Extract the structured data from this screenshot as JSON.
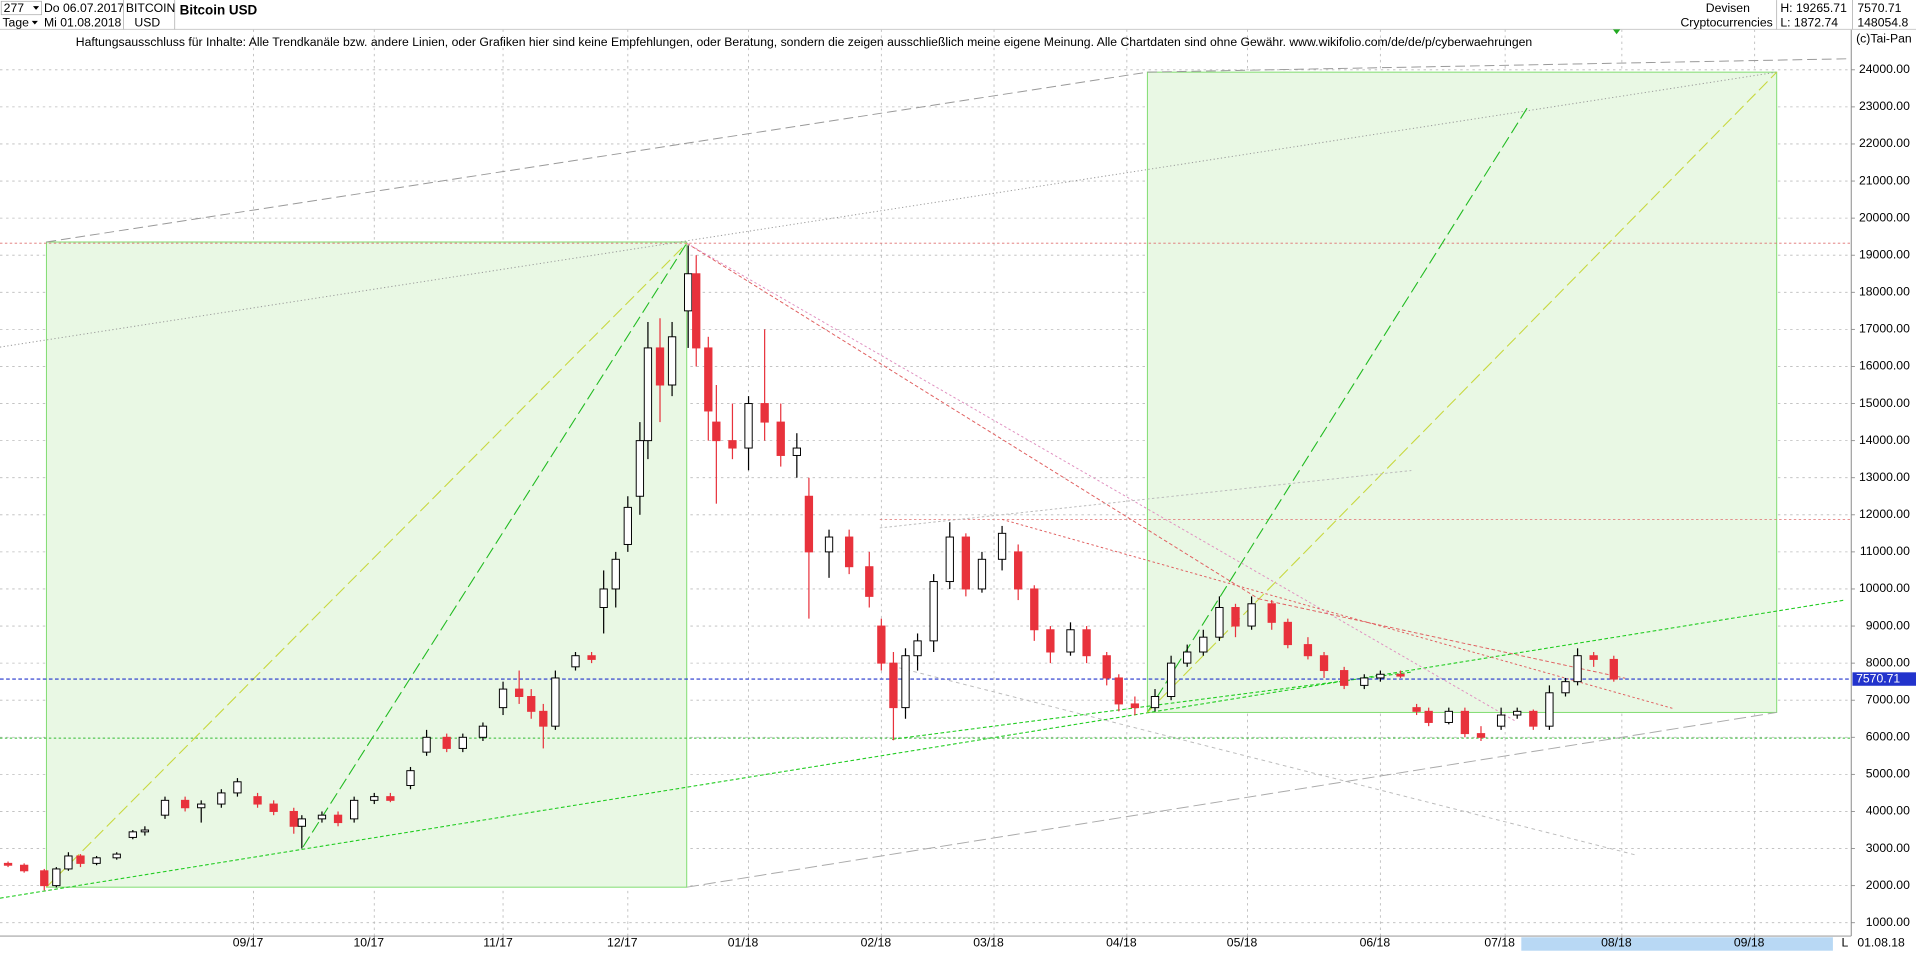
{
  "header": {
    "count": "277",
    "period": "Tage",
    "start": "Do 06.07.2017",
    "end": "Mi 01.08.2018",
    "symbol": "BITCOIN",
    "currency": "USD",
    "group": "Devisen",
    "sector": "Cryptocurrencies",
    "high": "H: 19265.71",
    "low": "L: 1872.74",
    "volume": "148054.8",
    "copyright": "(c)Tai-Pan",
    "date": "01.08.18",
    "scale": "L"
  },
  "chart_data": {
    "type": "candlestick",
    "title": "Bitcoin USD",
    "disclaimer": "Haftungsausschluss für Inhalte: Alle Trendkanäle bzw. andere Linien, oder Grafiken hier sind keine Empfehlungen, oder Beratung, sondern die zeigen ausschließlich meine eigene Meinung. Alle Chartdaten sind ohne Gewähr.  www.wikifolio.com/de/de/p/cyberwaehrungen",
    "up_color": "#000000",
    "down_color": "#e8323c",
    "last_price": 7570.71,
    "x": [
      2,
      6,
      11,
      14,
      17,
      20,
      24,
      29,
      33,
      36,
      41,
      46,
      50,
      55,
      59,
      64,
      68,
      73,
      75,
      80,
      84,
      88,
      93,
      97,
      102,
      106,
      111,
      115,
      120,
      125,
      129,
      132,
      135,
      138,
      143,
      147,
      150,
      153,
      156,
      159,
      161,
      164,
      167,
      171,
      173,
      176,
      178,
      182,
      186,
      190,
      194,
      198,
      201,
      206,
      211,
      216,
      219,
      222,
      225,
      228,
      232,
      236,
      240,
      244,
      249,
      253,
      257,
      261,
      266,
      270,
      275,
      278,
      282,
      287,
      291,
      295,
      299,
      303,
      307,
      311,
      316,
      320,
      325,
      329,
      334,
      339,
      343,
      348,
      352,
      355,
      360,
      364,
      368,
      373,
      377,
      381,
      385,
      389,
      392,
      396,
      401
    ],
    "open": [
      2600,
      2550,
      2400,
      2000,
      2450,
      2800,
      2600,
      2750,
      3300,
      3450,
      3900,
      4300,
      4100,
      4200,
      4500,
      4400,
      4200,
      4000,
      3600,
      3800,
      3900,
      3800,
      4300,
      4400,
      4700,
      5600,
      6000,
      5700,
      6000,
      6800,
      7300,
      7100,
      6700,
      6300,
      7900,
      8200,
      9500,
      10000,
      11200,
      12500,
      14000,
      16500,
      15500,
      17500,
      18500,
      16500,
      14500,
      14000,
      13800,
      15000,
      14500,
      13600,
      12500,
      11000,
      11400,
      10600,
      9000,
      8000,
      6800,
      8200,
      8600,
      10200,
      11400,
      10000,
      10800,
      11000,
      10000,
      8900,
      8300,
      8900,
      8200,
      7600,
      6900,
      6800,
      7100,
      8000,
      8300,
      8700,
      9500,
      9000,
      9600,
      9100,
      8500,
      8200,
      7800,
      7400,
      7600,
      7700,
      6800,
      6700,
      6400,
      6700,
      6100,
      6300,
      6600,
      6700,
      6300,
      7200,
      7500,
      8200,
      8100
    ],
    "high": [
      2650,
      2600,
      2450,
      2500,
      2900,
      2850,
      2800,
      2900,
      3500,
      3600,
      4400,
      4400,
      4300,
      4600,
      4900,
      4500,
      4300,
      4100,
      3900,
      4000,
      4000,
      4400,
      4500,
      4500,
      5200,
      6200,
      6100,
      6100,
      6400,
      7500,
      7800,
      7300,
      6900,
      7800,
      8300,
      8300,
      10500,
      11000,
      12500,
      14500,
      17200,
      17300,
      17200,
      19265.71,
      19000,
      16800,
      15500,
      15000,
      15200,
      17000,
      15000,
      14200,
      13000,
      11600,
      11600,
      11000,
      9200,
      8300,
      8400,
      8800,
      10400,
      11800,
      11500,
      11000,
      11700,
      11200,
      10100,
      9000,
      9100,
      9000,
      8300,
      7700,
      7100,
      7300,
      8200,
      8500,
      8900,
      9800,
      9600,
      9800,
      9700,
      9200,
      8700,
      8300,
      7900,
      7700,
      7800,
      7800,
      6900,
      6800,
      6800,
      6800,
      6300,
      6800,
      6800,
      6750,
      7400,
      7600,
      8400,
      8300,
      8200
    ],
    "low": [
      2500,
      2350,
      1872.74,
      1950,
      2400,
      2500,
      2550,
      2700,
      3250,
      3350,
      3800,
      4000,
      3700,
      4100,
      4400,
      4100,
      3900,
      3400,
      3000,
      3700,
      3600,
      3700,
      4200,
      4250,
      4600,
      5500,
      5600,
      5600,
      5900,
      6600,
      6900,
      6500,
      5700,
      6200,
      7800,
      8000,
      8800,
      9500,
      11000,
      12000,
      13500,
      14500,
      15200,
      16500,
      16000,
      14000,
      12300,
      13500,
      13200,
      14000,
      13300,
      13000,
      9200,
      10300,
      10400,
      9500,
      7800,
      5920,
      6500,
      7800,
      8300,
      10000,
      9800,
      9900,
      10500,
      9700,
      8600,
      8000,
      8200,
      8000,
      7400,
      6700,
      6600,
      6700,
      7000,
      7900,
      8200,
      8600,
      8700,
      8900,
      8900,
      8400,
      8100,
      7600,
      7300,
      7300,
      7500,
      7600,
      6600,
      6300,
      6350,
      6000,
      5900,
      6200,
      6500,
      6200,
      6200,
      7100,
      7400,
      7900,
      7500
    ],
    "close": [
      2550,
      2400,
      2000,
      2450,
      2800,
      2600,
      2750,
      2850,
      3450,
      3500,
      4300,
      4100,
      4200,
      4500,
      4800,
      4200,
      4000,
      3600,
      3800,
      3900,
      3700,
      4300,
      4400,
      4300,
      5100,
      6000,
      5700,
      6000,
      6300,
      7300,
      7100,
      6700,
      6300,
      7600,
      8200,
      8100,
      10000,
      10800,
      12200,
      14000,
      16500,
      15500,
      16800,
      18500,
      16500,
      14800,
      14000,
      13800,
      15000,
      14500,
      13600,
      13800,
      11000,
      11400,
      10600,
      9800,
      8000,
      6800,
      8200,
      8600,
      10200,
      11400,
      10000,
      10800,
      11500,
      10000,
      8900,
      8300,
      8900,
      8200,
      7600,
      6900,
      6800,
      7100,
      8000,
      8300,
      8700,
      9500,
      9000,
      9600,
      9100,
      8500,
      8200,
      7800,
      7400,
      7600,
      7700,
      7650,
      6700,
      6400,
      6700,
      6100,
      6000,
      6600,
      6700,
      6300,
      7200,
      7500,
      8200,
      8100,
      7570.71
    ],
    "xlim": [
      0,
      460
    ],
    "xticks": [
      {
        "value": 63,
        "label": "09/17"
      },
      {
        "value": 93,
        "label": "10/17"
      },
      {
        "value": 125,
        "label": "11/17"
      },
      {
        "value": 156,
        "label": "12/17"
      },
      {
        "value": 186,
        "label": "01/18"
      },
      {
        "value": 219,
        "label": "02/18"
      },
      {
        "value": 247,
        "label": "03/18"
      },
      {
        "value": 280,
        "label": "04/18"
      },
      {
        "value": 310,
        "label": "05/18"
      },
      {
        "value": 343,
        "label": "06/18"
      },
      {
        "value": 374,
        "label": "07/18"
      },
      {
        "value": 403,
        "label": "08/18"
      },
      {
        "value": 436,
        "label": "09/18"
      }
    ],
    "ylim": [
      640,
      25090
    ],
    "yticks": [
      {
        "value": 1000,
        "label": "1000.00"
      },
      {
        "value": 2000,
        "label": "2000.00"
      },
      {
        "value": 3000,
        "label": "3000.00"
      },
      {
        "value": 4000,
        "label": "4000.00"
      },
      {
        "value": 5000,
        "label": "5000.00"
      },
      {
        "value": 6000,
        "label": "6000.00"
      },
      {
        "value": 7000,
        "label": "7000.00"
      },
      {
        "value": 8000,
        "label": "8000.00"
      },
      {
        "value": 9000,
        "label": "9000.00"
      },
      {
        "value": 10000,
        "label": "10000.00"
      },
      {
        "value": 11000,
        "label": "11000.00"
      },
      {
        "value": 12000,
        "label": "12000.00"
      },
      {
        "value": 13000,
        "label": "13000.00"
      },
      {
        "value": 14000,
        "label": "14000.00"
      },
      {
        "value": 15000,
        "label": "15000.00"
      },
      {
        "value": 16000,
        "label": "16000.00"
      },
      {
        "value": 17000,
        "label": "17000.00"
      },
      {
        "value": 18000,
        "label": "18000.00"
      },
      {
        "value": 19000,
        "label": "19000.00"
      },
      {
        "value": 20000,
        "label": "20000.00"
      },
      {
        "value": 21000,
        "label": "21000.00"
      },
      {
        "value": 22000,
        "label": "22000.00"
      },
      {
        "value": 23000,
        "label": "23000.00"
      },
      {
        "value": 24000,
        "label": "24000.00"
      }
    ],
    "grid": true
  }
}
